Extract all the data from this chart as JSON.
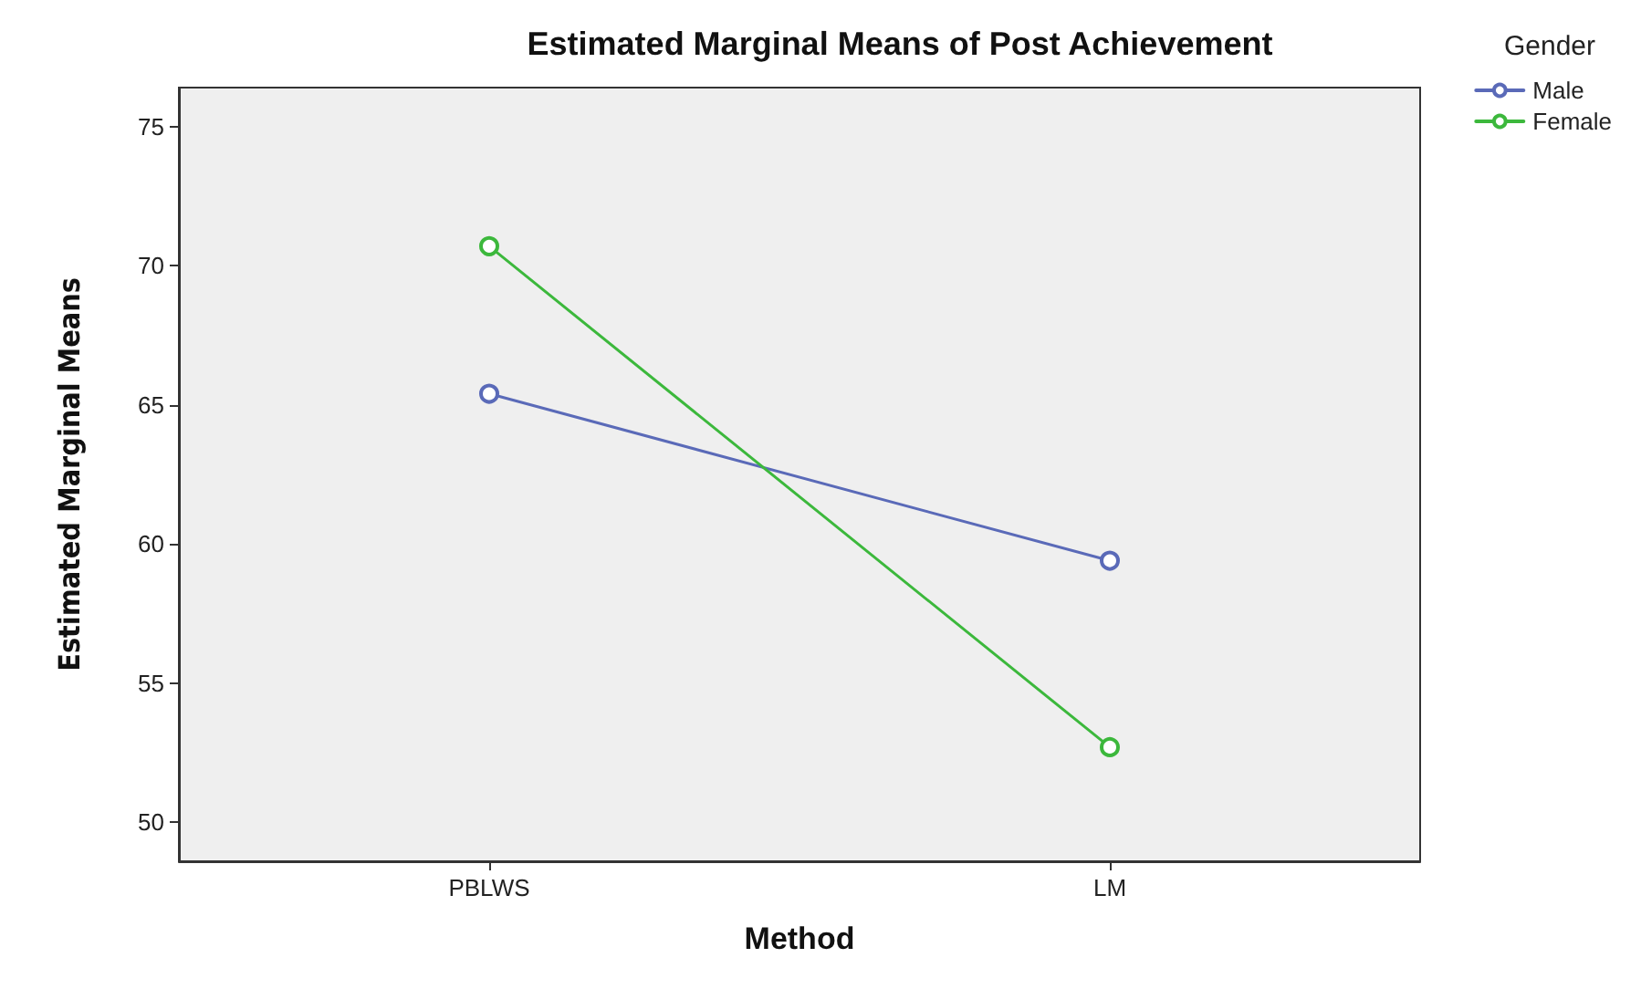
{
  "chart_data": {
    "type": "line",
    "title": "Estimated Marginal Means of Post Achievement",
    "xlabel": "Method",
    "ylabel": "Estimated Marginal Means",
    "legend_title": "Gender",
    "categories": [
      "PBLWS",
      "LM"
    ],
    "series": [
      {
        "name": "Male",
        "color": "#5a6ab8",
        "values": [
          65.4,
          59.4
        ]
      },
      {
        "name": "Female",
        "color": "#3cb83c",
        "values": [
          70.7,
          52.7
        ]
      }
    ],
    "ylim": [
      48.6,
      76.4
    ],
    "yticks": [
      50,
      55,
      60,
      65,
      70,
      75
    ],
    "grid": false,
    "legend": "top right",
    "marker": "circle",
    "line_style": "solid"
  }
}
